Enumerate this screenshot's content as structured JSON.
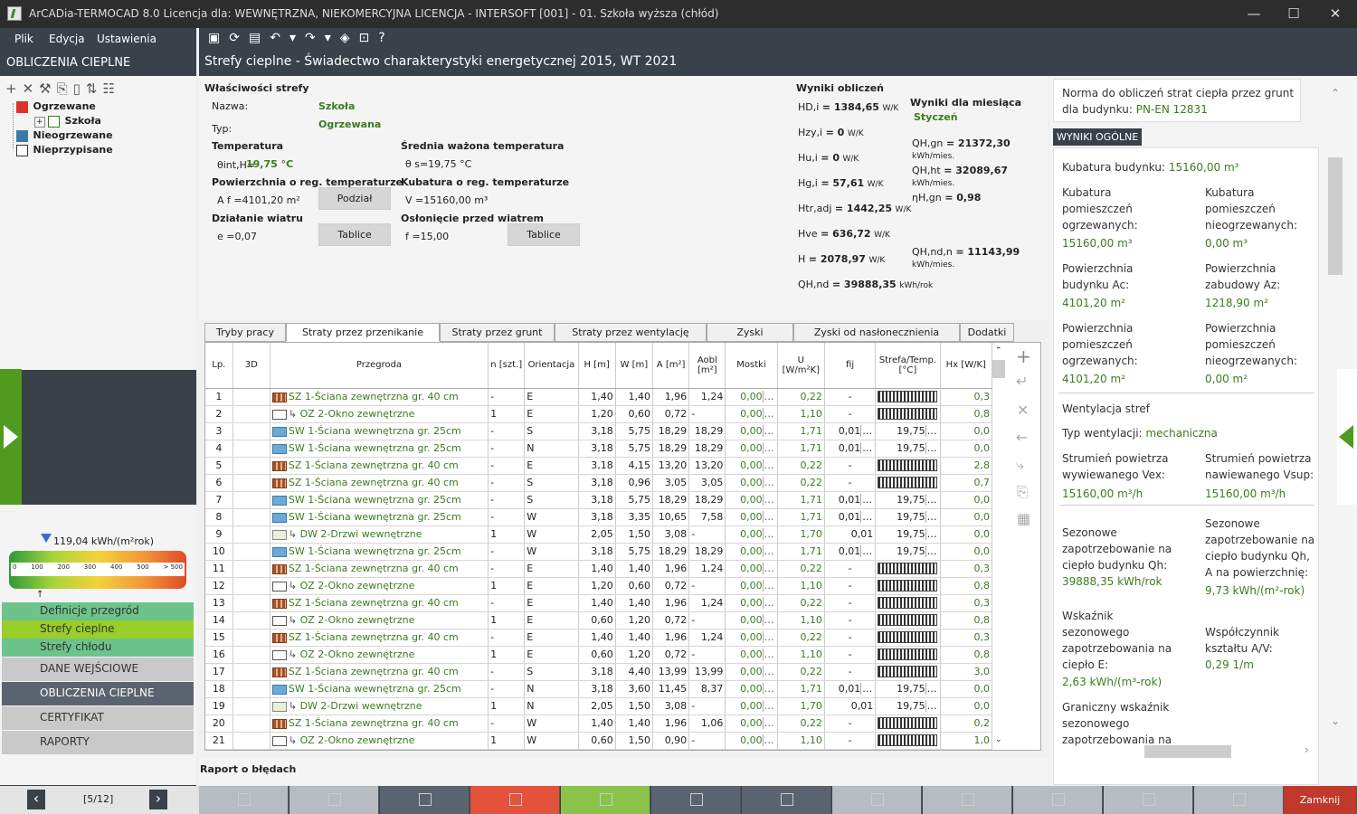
{
  "window": {
    "title": "ArCADia-TERMOCAD 8.0 Licencja dla: WEWNĘTRZNA, NIEKOMERCYJNA LICENCJA - INTERSOFT [001] - 01. Szkoła wyższa (chłód)",
    "minimize": "—",
    "maximize": "☐",
    "close": "✕"
  },
  "menu": {
    "plik": "Plik",
    "edycja": "Edycja",
    "ustawienia": "Ustawienia"
  },
  "left_header": "OBLICZENIA CIEPLNE",
  "doc_title": "Strefy cieplne - Świadectwo charakterystyki energetycznej 2015, WT 2021",
  "tree": [
    {
      "label": "Ogrzewane",
      "color": "#d9332b"
    },
    {
      "label": "Szkoła",
      "color": "#3a7d1e"
    },
    {
      "label": "Nieogrzewane",
      "color": "#3a7aa6"
    },
    {
      "label": "Nieprzypisane",
      "color": "#555555"
    }
  ],
  "energy": {
    "value_label": "119,04 kWh/(m²rok)",
    "ticks": [
      "0",
      "100",
      "200",
      "300",
      "400",
      "500",
      "> 500"
    ]
  },
  "left_nav": [
    "Definicje przegród",
    "Strefy cieplne",
    "Strefy chłodu",
    "DANE WEJŚCIOWE",
    "OBLICZENIA CIEPLNE",
    "CERTYFIKAT",
    "RAPORTY"
  ],
  "pager": {
    "prev": "‹",
    "label": "[5/12]",
    "next": "›"
  },
  "props": {
    "section": "Właściwości strefy",
    "name_label": "Nazwa:",
    "name": "Szkoła",
    "type_label": "Typ:",
    "type": "Ogrzewana",
    "temp_title": "Temperatura",
    "temp_sym": "θint,H=",
    "temp_val": "19,75 °C",
    "avg_temp_title": "Średnia ważona temperatura",
    "avg_temp": "θ s=19,75 °C",
    "area_title": "Powierzchnia o reg. temperaturze",
    "area": "A f =4101,20 m²",
    "podzial": "Podział",
    "vol_title": "Kubatura o reg. temperaturze",
    "vol": "V =15160,00 m³",
    "wind_title": "Działanie wiatru",
    "wind": "e =0,07",
    "tablice": "Tablice",
    "shield_title": "Osłonięcie przed wiatrem",
    "shield": "f =15,00"
  },
  "results": {
    "title": "Wyniki obliczeń",
    "rows": [
      {
        "sym": "HD,i",
        "val": "= 1384,65",
        "unit": "W/K"
      },
      {
        "sym": "Hzy,i",
        "val": "= 0",
        "unit": "W/K"
      },
      {
        "sym": "Hu,i",
        "val": "= 0",
        "unit": "W/K"
      },
      {
        "sym": "Hg,i",
        "val": "= 57,61",
        "unit": "W/K"
      },
      {
        "sym": "Htr,adj",
        "val": "= 1442,25",
        "unit": "W/K"
      },
      {
        "sym": "Hve",
        "val": "= 636,72",
        "unit": "W/K"
      },
      {
        "sym": "H",
        "val": "= 2078,97",
        "unit": "W/K"
      },
      {
        "sym": "QH,nd",
        "val": "= 39888,35",
        "unit": "kWh/rok"
      }
    ],
    "month_title": "Wyniki dla miesiąca",
    "month": "Styczeń",
    "month_rows": [
      {
        "sym": "QH,gn",
        "val": "= 21372,30",
        "unit": "kWh/mies."
      },
      {
        "sym": "QH,ht",
        "val": "= 32089,67",
        "unit": "kWh/mies."
      },
      {
        "sym": "ηH,gn",
        "val": "= 0,98",
        "unit": ""
      },
      {
        "sym": "QH,nd,n",
        "val": "= 11143,99",
        "unit": "kWh/mies."
      }
    ]
  },
  "tabs": [
    "Tryby pracy",
    "Straty przez przenikanie",
    "Straty przez grunt",
    "Straty przez wentylację",
    "Zyski wewnętrzne",
    "Zyski od nasłonecznienia",
    "Dodatki"
  ],
  "columns": [
    "Lp.",
    "3D",
    "Przegroda",
    "n [szt.]",
    "Orientacja",
    "H [m]",
    "W [m]",
    "A [m²]",
    "Aobl [m²]",
    "Mostki",
    "U [W/m²K]",
    "fij",
    "Strefa/Temp. [°C]",
    "Hx [W/K]"
  ],
  "rows": [
    {
      "lp": "1",
      "ic": "brick",
      "sub": false,
      "name": "SZ 1-Ściana zewnętrzna gr. 40 cm",
      "n": "-",
      "o": "E",
      "h": "1,40",
      "w": "1,40",
      "a": "1,96",
      "ao": "1,24",
      "m": "0,00",
      "u": "0,22",
      "f": "-",
      "z": "zone",
      "hx": "0,3"
    },
    {
      "lp": "2",
      "ic": "win",
      "sub": true,
      "name": "OZ 2-Okno zewnętrzne",
      "n": "1",
      "o": "E",
      "h": "1,20",
      "w": "0,60",
      "a": "0,72",
      "ao": "-",
      "m": "0,00",
      "u": "1,10",
      "f": "-",
      "z": "zone",
      "hx": "0,8"
    },
    {
      "lp": "3",
      "ic": "wall",
      "sub": false,
      "name": "SW 1-Ściana wewnętrzna gr. 25cm",
      "n": "-",
      "o": "S",
      "h": "3,18",
      "w": "5,75",
      "a": "18,29",
      "ao": "18,29",
      "m": "0,00",
      "u": "1,71",
      "f": "0,01",
      "z": "19,75",
      "hx": "0,0"
    },
    {
      "lp": "4",
      "ic": "wall",
      "sub": false,
      "name": "SW 1-Ściana wewnętrzna gr. 25cm",
      "n": "-",
      "o": "N",
      "h": "3,18",
      "w": "5,75",
      "a": "18,29",
      "ao": "18,29",
      "m": "0,00",
      "u": "1,71",
      "f": "0,01",
      "z": "19,75",
      "hx": "0,0"
    },
    {
      "lp": "5",
      "ic": "brick",
      "sub": false,
      "name": "SZ 1-Ściana zewnętrzna gr. 40 cm",
      "n": "-",
      "o": "E",
      "h": "3,18",
      "w": "4,15",
      "a": "13,20",
      "ao": "13,20",
      "m": "0,00",
      "u": "0,22",
      "f": "-",
      "z": "zone",
      "hx": "2,8"
    },
    {
      "lp": "6",
      "ic": "brick",
      "sub": false,
      "name": "SZ 1-Ściana zewnętrzna gr. 40 cm",
      "n": "-",
      "o": "S",
      "h": "3,18",
      "w": "0,96",
      "a": "3,05",
      "ao": "3,05",
      "m": "0,00",
      "u": "0,22",
      "f": "-",
      "z": "zone",
      "hx": "0,7"
    },
    {
      "lp": "7",
      "ic": "wall",
      "sub": false,
      "name": "SW 1-Ściana wewnętrzna gr. 25cm",
      "n": "-",
      "o": "S",
      "h": "3,18",
      "w": "5,75",
      "a": "18,29",
      "ao": "18,29",
      "m": "0,00",
      "u": "1,71",
      "f": "0,01",
      "z": "19,75",
      "hx": "0,0"
    },
    {
      "lp": "8",
      "ic": "wall",
      "sub": false,
      "name": "SW 1-Ściana wewnętrzna gr. 25cm",
      "n": "-",
      "o": "W",
      "h": "3,18",
      "w": "3,35",
      "a": "10,65",
      "ao": "7,58",
      "m": "0,00",
      "u": "1,71",
      "f": "0,01",
      "z": "19,75",
      "hx": "0,0"
    },
    {
      "lp": "9",
      "ic": "door",
      "sub": true,
      "name": "DW 2-Drzwi wewnętrzne",
      "n": "1",
      "o": "W",
      "h": "2,05",
      "w": "1,50",
      "a": "3,08",
      "ao": "-",
      "m": "0,00",
      "u": "1,70",
      "f": "0,01",
      "z": "19,75",
      "hx": "0,0"
    },
    {
      "lp": "10",
      "ic": "wall",
      "sub": false,
      "name": "SW 1-Ściana wewnętrzna gr. 25cm",
      "n": "-",
      "o": "W",
      "h": "3,18",
      "w": "5,75",
      "a": "18,29",
      "ao": "18,29",
      "m": "0,00",
      "u": "1,71",
      "f": "0,01",
      "z": "19,75",
      "hx": "0,0"
    },
    {
      "lp": "11",
      "ic": "brick",
      "sub": false,
      "name": "SZ 1-Ściana zewnętrzna gr. 40 cm",
      "n": "-",
      "o": "E",
      "h": "1,40",
      "w": "1,40",
      "a": "1,96",
      "ao": "1,24",
      "m": "0,00",
      "u": "0,22",
      "f": "-",
      "z": "zone",
      "hx": "0,3"
    },
    {
      "lp": "12",
      "ic": "win",
      "sub": true,
      "name": "OZ 2-Okno zewnętrzne",
      "n": "1",
      "o": "E",
      "h": "1,20",
      "w": "0,60",
      "a": "0,72",
      "ao": "-",
      "m": "0,00",
      "u": "1,10",
      "f": "-",
      "z": "zone",
      "hx": "0,8"
    },
    {
      "lp": "13",
      "ic": "brick",
      "sub": false,
      "name": "SZ 1-Ściana zewnętrzna gr. 40 cm",
      "n": "-",
      "o": "E",
      "h": "1,40",
      "w": "1,40",
      "a": "1,96",
      "ao": "1,24",
      "m": "0,00",
      "u": "0,22",
      "f": "-",
      "z": "zone",
      "hx": "0,3"
    },
    {
      "lp": "14",
      "ic": "win",
      "sub": true,
      "name": "OZ 2-Okno zewnętrzne",
      "n": "1",
      "o": "E",
      "h": "0,60",
      "w": "1,20",
      "a": "0,72",
      "ao": "-",
      "m": "0,00",
      "u": "1,10",
      "f": "-",
      "z": "zone",
      "hx": "0,8"
    },
    {
      "lp": "15",
      "ic": "brick",
      "sub": false,
      "name": "SZ 1-Ściana zewnętrzna gr. 40 cm",
      "n": "-",
      "o": "E",
      "h": "1,40",
      "w": "1,40",
      "a": "1,96",
      "ao": "1,24",
      "m": "0,00",
      "u": "0,22",
      "f": "-",
      "z": "zone",
      "hx": "0,3"
    },
    {
      "lp": "16",
      "ic": "win",
      "sub": true,
      "name": "OZ 2-Okno zewnętrzne",
      "n": "1",
      "o": "E",
      "h": "0,60",
      "w": "1,20",
      "a": "0,72",
      "ao": "-",
      "m": "0,00",
      "u": "1,10",
      "f": "-",
      "z": "zone",
      "hx": "0,8"
    },
    {
      "lp": "17",
      "ic": "brick",
      "sub": false,
      "name": "SZ 1-Ściana zewnętrzna gr. 40 cm",
      "n": "-",
      "o": "S",
      "h": "3,18",
      "w": "4,40",
      "a": "13,99",
      "ao": "13,99",
      "m": "0,00",
      "u": "0,22",
      "f": "-",
      "z": "zone",
      "hx": "3,0"
    },
    {
      "lp": "18",
      "ic": "wall",
      "sub": false,
      "name": "SW 1-Ściana wewnętrzna gr. 25cm",
      "n": "-",
      "o": "N",
      "h": "3,18",
      "w": "3,60",
      "a": "11,45",
      "ao": "8,37",
      "m": "0,00",
      "u": "1,71",
      "f": "0,01",
      "z": "19,75",
      "hx": "0,0"
    },
    {
      "lp": "19",
      "ic": "door",
      "sub": true,
      "name": "DW 2-Drzwi wewnętrzne",
      "n": "1",
      "o": "N",
      "h": "2,05",
      "w": "1,50",
      "a": "3,08",
      "ao": "-",
      "m": "0,00",
      "u": "1,70",
      "f": "0,01",
      "z": "19,75",
      "hx": "0,0"
    },
    {
      "lp": "20",
      "ic": "brick",
      "sub": false,
      "name": "SZ 1-Ściana zewnętrzna gr. 40 cm",
      "n": "-",
      "o": "W",
      "h": "1,40",
      "w": "1,40",
      "a": "1,96",
      "ao": "1,06",
      "m": "0,00",
      "u": "0,22",
      "f": "-",
      "z": "zone",
      "hx": "0,2"
    },
    {
      "lp": "21",
      "ic": "win",
      "sub": true,
      "name": "OZ 2-Okno zewnętrzne",
      "n": "1",
      "o": "W",
      "h": "0,60",
      "w": "1,50",
      "a": "0,90",
      "ao": "-",
      "m": "0,00",
      "u": "1,10",
      "f": "-",
      "z": "zone",
      "hx": "1,0"
    }
  ],
  "raport_label": "Raport o błędach",
  "right": {
    "norm": "Norma do obliczeń strat ciepła przez grunt dla budynku:",
    "norm_val": "PN-EN 12831",
    "header": "WYNIKI OGÓLNE",
    "kub": "Kubatura budynku:",
    "kub_val": "15160,00 m³",
    "kub_og": "Kubatura pomieszczeń ogrzewanych:",
    "kub_og_val": "15160,00 m³",
    "kub_nog": "Kubatura pomieszczeń nieogrzewanych:",
    "kub_nog_val": "0,00 m³",
    "pow_ac": "Powierzchnia budynku Ac:",
    "pow_ac_val": "4101,20 m²",
    "pow_az": "Powierzchnia zabudowy Az:",
    "pow_az_val": "1218,90 m²",
    "pow_og": "Powierzchnia pomieszczeń ogrzewanych:",
    "pow_og_val": "4101,20 m²",
    "pow_nog": "Powierzchnia pomieszczeń nieogrzewanych:",
    "pow_nog_val": "0,00 m²",
    "went": "Wentylacja stref",
    "typ_went": "Typ wentylacji:",
    "typ_went_val": "mechaniczna",
    "str_wyw": "Strumień powietrza wywiewanego Vex:",
    "str_wyw_val": "15160,00 m³/h",
    "str_naw": "Strumień powietrza nawiewanego Vsup:",
    "str_naw_val": "15160,00 m³/h",
    "sez": "Sezonowe zapotrzebowanie na ciepło budynku Qh:",
    "sez_val": "39888,35 kWh/rok",
    "sez_a": "Sezonowe zapotrzebowanie na ciepło budynku Qh, A na powierzchnię:",
    "sez_a_val": "9,73 kWh/(m²-rok)",
    "wsk": "Wskaźnik sezonowego zapotrzebowania na ciepło E:",
    "wsk_val": "2,63 kWh/(m³-rok)",
    "ksz": "Współczynnik kształtu A/V:",
    "ksz_val": "0,29 1/m",
    "gran": "Graniczny wskaźnik sezonowego zapotrzebowania na"
  },
  "bottom": {
    "close": "Zamknij"
  },
  "colors": {
    "accent_green": "#3a7d1e",
    "dark": "#3a4149",
    "red": "#e4523b",
    "light_green": "#8bc34a"
  }
}
